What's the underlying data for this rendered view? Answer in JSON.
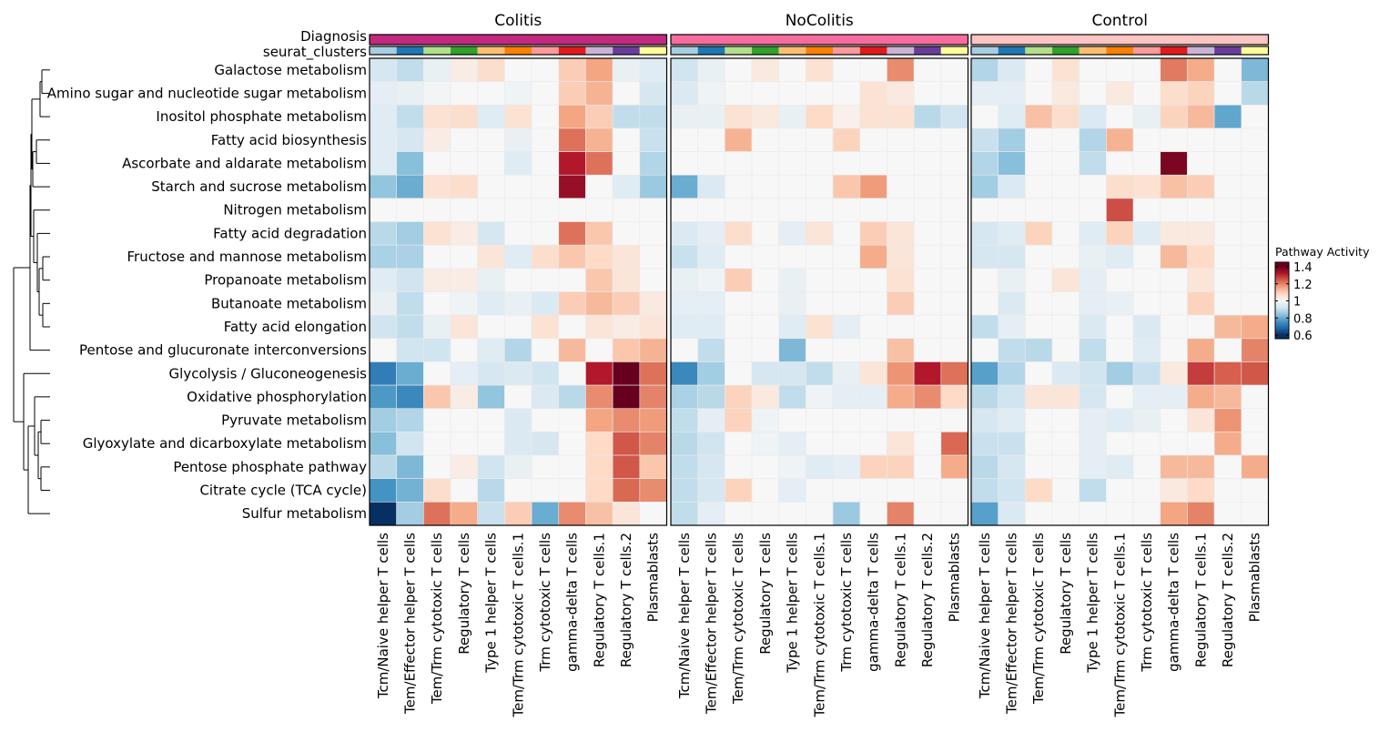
{
  "chart_data": {
    "type": "heatmap",
    "legend": {
      "title": "Pathway Activity",
      "ticks": [
        1.4,
        1.2,
        1,
        0.8,
        0.6
      ],
      "tick_labels": [
        "1.4",
        "1.2",
        "1",
        "0.8",
        "0.6"
      ],
      "range": [
        0.6,
        1.4
      ],
      "placement": "right",
      "palette": "RdBu"
    },
    "annotations": {
      "diagnosis_label": "Diagnosis",
      "clusters_label": "seurat_clusters",
      "diagnosis_colors": {
        "Colitis": "#c2297f",
        "NoColitis": "#f76c9e",
        "Control": "#fcc4c2"
      },
      "cluster_colors": [
        "#a6cee3",
        "#1f78b4",
        "#b2df8a",
        "#33a02c",
        "#fdbf6f",
        "#ff7f00",
        "#fb9a99",
        "#e31a1c",
        "#cab2d6",
        "#6a3d9a",
        "#ffff99"
      ]
    },
    "panels": [
      "Colitis",
      "NoColitis",
      "Control"
    ],
    "columns": [
      "Tcm/Naive helper T cells",
      "Tem/Effector helper T cells",
      "Tem/Trm cytotoxic T cells",
      "Regulatory T cells",
      "Type 1 helper T cells",
      "Tem/Trm cytotoxic T cells.1",
      "Trm cytotoxic T cells",
      "gamma-delta T cells",
      "Regulatory T cells.1",
      "Regulatory T cells.2",
      "Plasmablasts"
    ],
    "rows": [
      "Galactose metabolism",
      "Amino sugar and nucleotide sugar metabolism",
      "Inositol phosphate metabolism",
      "Fatty acid biosynthesis",
      "Ascorbate and aldarate metabolism",
      "Starch and sucrose metabolism",
      "Nitrogen metabolism",
      "Fatty acid degradation",
      "Fructose and mannose metabolism",
      "Propanoate metabolism",
      "Butanoate metabolism",
      "Fatty acid elongation",
      "Pentose and glucuronate interconversions",
      "Glycolysis / Gluconeogenesis",
      "Oxidative phosphorylation",
      "Pyruvate metabolism",
      "Glyoxylate and dicarboxylate metabolism",
      "Pentose phosphate pathway",
      "Citrate cycle (TCA cycle)",
      "Sulfur metabolism"
    ],
    "row_dendrogram": true,
    "values": {
      "Colitis": [
        [
          0.93,
          0.9,
          0.97,
          1.03,
          1.07,
          1,
          1,
          1.1,
          1.16,
          0.97,
          0.95
        ],
        [
          0.96,
          0.97,
          0.99,
          1,
          1,
          0.98,
          1,
          1.1,
          1.14,
          1,
          0.93
        ],
        [
          0.95,
          0.9,
          1.06,
          1.07,
          0.95,
          1.06,
          1,
          1.16,
          1.1,
          0.9,
          0.9
        ],
        [
          0.95,
          0.93,
          1.03,
          1,
          1,
          0.97,
          1,
          1.22,
          1.14,
          1,
          0.91
        ],
        [
          0.95,
          0.83,
          1,
          1,
          1,
          0.95,
          1,
          1.32,
          1.22,
          1,
          0.88
        ],
        [
          0.84,
          0.8,
          1.06,
          1.07,
          1,
          1,
          1,
          1.35,
          1,
          0.95,
          0.85
        ],
        [
          1,
          1,
          1,
          1,
          1,
          1,
          1,
          1,
          1,
          1,
          1
        ],
        [
          0.89,
          0.86,
          1.06,
          1.03,
          0.93,
          1,
          1,
          1.22,
          1.11,
          1,
          1
        ],
        [
          0.87,
          0.87,
          1,
          1,
          1.05,
          0.95,
          1.07,
          1.11,
          1.08,
          1.05,
          1
        ],
        [
          0.95,
          0.92,
          1.03,
          1.03,
          0.97,
          1,
          1,
          1,
          1.11,
          1.05,
          1
        ],
        [
          0.97,
          0.9,
          1,
          0.98,
          0.95,
          0.97,
          0.94,
          1.1,
          1.13,
          1.1,
          1.04
        ],
        [
          0.92,
          0.9,
          0.97,
          1.05,
          1,
          1,
          1.06,
          1,
          1.05,
          1.03,
          1.05
        ],
        [
          1,
          0.92,
          0.92,
          1,
          0.95,
          0.88,
          1,
          1.13,
          1,
          1.11,
          1.14
        ],
        [
          0.72,
          0.8,
          1,
          0.96,
          0.93,
          0.94,
          0.92,
          1,
          1.32,
          1.42,
          1.22
        ],
        [
          0.77,
          0.74,
          1.11,
          1.03,
          0.84,
          1,
          0.94,
          0.89,
          1.19,
          1.42,
          1.2
        ],
        [
          0.86,
          0.88,
          1,
          1,
          1,
          0.94,
          1,
          1,
          1.16,
          1.19,
          1.17
        ],
        [
          0.83,
          0.92,
          1,
          1,
          1,
          0.94,
          0.93,
          1,
          1.08,
          1.25,
          1.2
        ],
        [
          0.89,
          0.82,
          1,
          1.03,
          0.92,
          0.97,
          1,
          1,
          1.08,
          1.25,
          1.11
        ],
        [
          0.76,
          0.81,
          1.07,
          1,
          0.89,
          1,
          1,
          1,
          1.08,
          1.23,
          1.19
        ],
        [
          0.6,
          0.86,
          1.22,
          1.15,
          0.91,
          1.1,
          0.8,
          1.19,
          1.12,
          1.05,
          1
        ]
      ],
      "NoColitis": [
        [
          0.92,
          0.97,
          1,
          1.04,
          1,
          1.06,
          1,
          1,
          1.19,
          1,
          1
        ],
        [
          0.94,
          0.98,
          1,
          1,
          1,
          1,
          1,
          1.06,
          1.04,
          1,
          1
        ],
        [
          0.97,
          0.97,
          1.06,
          1.04,
          0.97,
          1.08,
          1.02,
          1.06,
          1.06,
          0.89,
          0.92
        ],
        [
          1,
          1,
          1.14,
          1,
          1,
          1,
          1.09,
          1,
          1,
          1,
          1
        ],
        [
          1,
          1,
          1,
          1,
          1,
          1,
          1,
          1,
          1,
          1,
          1
        ],
        [
          0.8,
          0.94,
          1,
          1,
          1,
          1,
          1.11,
          1.17,
          1,
          1,
          1
        ],
        [
          1,
          1,
          1,
          1,
          1,
          1,
          1,
          1,
          1,
          1,
          1
        ],
        [
          0.94,
          0.96,
          1.07,
          1,
          0.96,
          1.05,
          1,
          1.1,
          1.05,
          1,
          1
        ],
        [
          0.91,
          0.95,
          1,
          1,
          1,
          1,
          1,
          1.15,
          1.05,
          1,
          1
        ],
        [
          0.97,
          0.98,
          1.1,
          1,
          0.97,
          1,
          1,
          1,
          1.06,
          1,
          1
        ],
        [
          0.96,
          0.96,
          1,
          1,
          0.97,
          1,
          1,
          1,
          1.1,
          1,
          1
        ],
        [
          0.95,
          0.95,
          1,
          1,
          0.95,
          1.06,
          0.96,
          1,
          1,
          1,
          1
        ],
        [
          1,
          0.9,
          1,
          1,
          0.82,
          1,
          1,
          1,
          1.12,
          1,
          1
        ],
        [
          0.74,
          0.86,
          1,
          0.93,
          0.93,
          0.9,
          0.97,
          1.05,
          1.18,
          1.32,
          1.22
        ],
        [
          0.87,
          0.89,
          1.09,
          1.04,
          0.9,
          0.98,
          0.96,
          0.96,
          1.15,
          1.19,
          1.08
        ],
        [
          0.9,
          0.96,
          1.09,
          0.98,
          1,
          1,
          1,
          1,
          1,
          1,
          1
        ],
        [
          0.89,
          0.92,
          1,
          0.98,
          0.96,
          1,
          1,
          1,
          1.05,
          1,
          1.23
        ],
        [
          0.9,
          0.93,
          1,
          1,
          0.98,
          0.95,
          0.96,
          1.09,
          1.09,
          1,
          1.15
        ],
        [
          0.9,
          0.93,
          1.09,
          1,
          0.96,
          1,
          1,
          1,
          1,
          1,
          1
        ],
        [
          0.9,
          0.96,
          1,
          1,
          1,
          1,
          0.85,
          1,
          1.2,
          1,
          1
        ]
      ],
      "Control": [
        [
          0.88,
          0.94,
          1,
          1.06,
          1,
          1,
          1,
          1.21,
          1.15,
          1,
          0.82
        ],
        [
          0.96,
          0.96,
          1,
          1.04,
          1,
          1.04,
          1,
          1.07,
          1.09,
          1,
          0.89
        ],
        [
          1,
          0.95,
          1.12,
          1.07,
          0.94,
          1,
          0.97,
          1.09,
          1.13,
          0.79,
          1
        ],
        [
          0.91,
          0.86,
          1,
          1,
          0.88,
          1.14,
          1,
          1,
          1,
          1,
          1
        ],
        [
          0.88,
          0.83,
          1,
          1,
          0.9,
          1,
          1,
          1.38,
          1,
          1,
          1
        ],
        [
          0.86,
          0.94,
          1,
          1,
          1,
          1.07,
          1.06,
          1.12,
          1.1,
          1,
          1
        ],
        [
          1,
          1,
          1,
          1,
          1,
          1.26,
          1,
          1,
          1,
          1,
          1
        ],
        [
          0.93,
          0.95,
          1.09,
          1,
          0.95,
          1.09,
          0.95,
          1.04,
          1.04,
          1,
          1
        ],
        [
          0.93,
          0.93,
          1,
          1,
          0.97,
          0.95,
          1,
          1.13,
          1.08,
          1,
          1
        ],
        [
          1,
          0.97,
          1,
          1.05,
          0.96,
          1,
          1,
          1,
          1.05,
          1,
          1
        ],
        [
          1,
          0.94,
          1,
          1,
          0.96,
          0.97,
          1,
          1,
          1.09,
          1,
          1
        ],
        [
          0.9,
          0.96,
          1,
          1,
          0.94,
          1,
          0.94,
          1,
          1,
          1.13,
          1.15
        ],
        [
          1,
          0.9,
          0.89,
          1,
          0.9,
          1,
          0.95,
          1,
          1.15,
          1,
          1.2
        ],
        [
          0.78,
          0.88,
          1,
          0.94,
          0.92,
          0.86,
          0.91,
          1.04,
          1.28,
          1.24,
          1.25
        ],
        [
          0.89,
          0.92,
          1.05,
          1.05,
          0.93,
          1,
          0.96,
          0.96,
          1.15,
          1.13,
          1
        ],
        [
          0.93,
          0.95,
          1,
          1,
          0.96,
          0.95,
          0.97,
          1,
          1.05,
          1.18,
          1
        ],
        [
          0.91,
          0.91,
          1,
          1,
          0.96,
          1,
          1,
          1,
          1,
          1.15,
          1
        ],
        [
          0.89,
          0.93,
          1,
          1,
          0.96,
          0.95,
          1,
          1.13,
          1.13,
          1,
          1.15
        ],
        [
          0.9,
          0.92,
          1.08,
          1,
          0.9,
          1,
          1,
          1.04,
          1.08,
          1,
          1
        ],
        [
          0.78,
          0.94,
          1,
          1,
          1,
          1,
          1,
          1.16,
          1.2,
          1,
          1
        ]
      ]
    }
  }
}
